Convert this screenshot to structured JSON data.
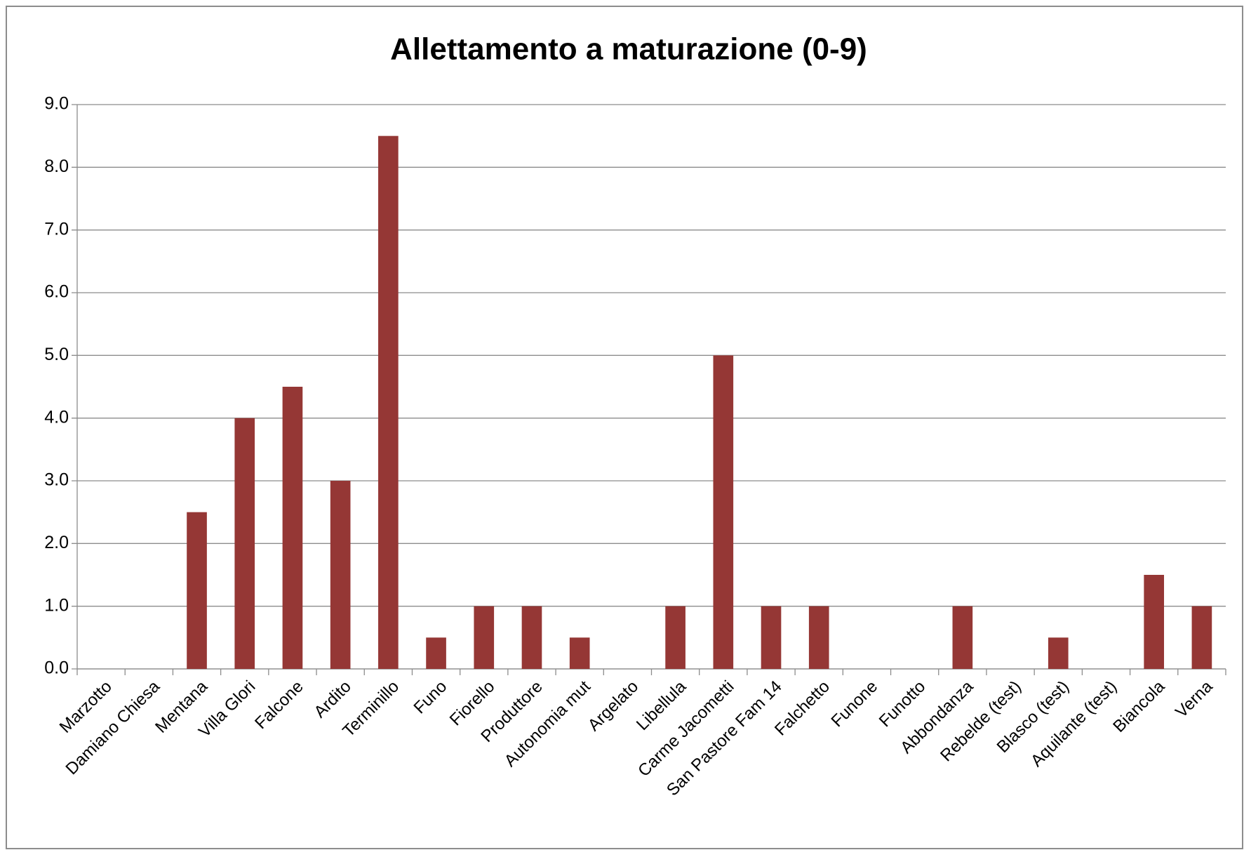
{
  "chart_data": {
    "type": "bar",
    "title": "Allettamento a maturazione (0-9)",
    "categories": [
      "Marzotto",
      "Damiano Chiesa",
      "Mentana",
      "Villa Glori",
      "Falcone",
      "Ardito",
      "Terminillo",
      "Funo",
      "Fiorello",
      "Produttore",
      "Autonomia mut",
      "Argelato",
      "Libellula",
      "Carme Jacometti",
      "San Pastore Fam 14",
      "Falchetto",
      "Funone",
      "Funotto",
      "Abbondanza",
      "Rebelde (test)",
      "Blasco (test)",
      "Aquilante (test)",
      "Biancola",
      "Verna"
    ],
    "values": [
      0,
      0,
      2.5,
      4,
      4.5,
      3,
      8.5,
      0.5,
      1,
      1,
      0.5,
      0,
      1,
      5,
      1,
      1,
      0,
      0,
      1,
      0,
      0.5,
      0,
      1.5,
      1
    ],
    "color": "#953735",
    "ylim": [
      0,
      9
    ],
    "yticks": [
      {
        "value": 0,
        "label": "0.0"
      },
      {
        "value": 1,
        "label": "1.0"
      },
      {
        "value": 2,
        "label": "2.0"
      },
      {
        "value": 3,
        "label": "3.0"
      },
      {
        "value": 4,
        "label": "4.0"
      },
      {
        "value": 5,
        "label": "5.0"
      },
      {
        "value": 6,
        "label": "6.0"
      },
      {
        "value": 7,
        "label": "7.0"
      },
      {
        "value": 8,
        "label": "8.0"
      },
      {
        "value": 9,
        "label": "9.0"
      }
    ],
    "grid": true
  }
}
